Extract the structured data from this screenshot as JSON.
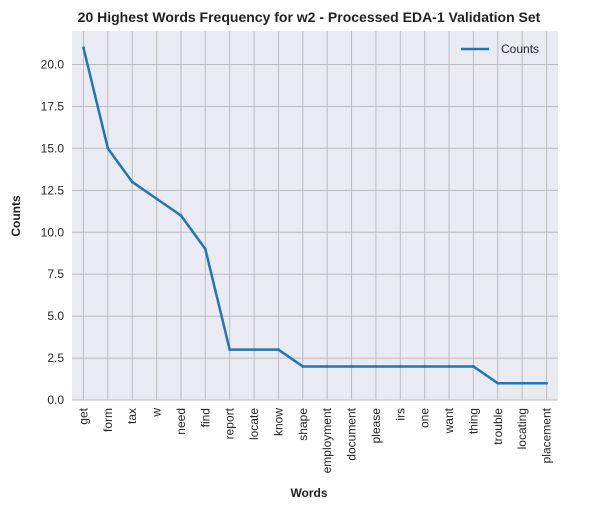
{
  "chart_data": {
    "type": "line",
    "title": "20 Highest Words Frequency for w2 - Processed EDA-1 Validation Set",
    "xlabel": "Words",
    "ylabel": "Counts",
    "categories": [
      "get",
      "form",
      "tax",
      "w",
      "need",
      "find",
      "report",
      "locate",
      "know",
      "shape",
      "employment",
      "document",
      "please",
      "irs",
      "one",
      "want",
      "thing",
      "trouble",
      "locating",
      "placement"
    ],
    "series": [
      {
        "name": "Counts",
        "values": [
          21,
          15,
          13,
          12,
          11,
          9,
          3,
          3,
          3,
          2,
          2,
          2,
          2,
          2,
          2,
          2,
          2,
          1,
          1,
          1
        ],
        "color": "#1f77b4"
      }
    ],
    "yticks": [
      "0.0",
      "2.5",
      "5.0",
      "7.5",
      "10.0",
      "12.5",
      "15.0",
      "17.5",
      "20.0"
    ],
    "ylim": [
      0,
      22
    ],
    "grid": true,
    "legend_position": "top-right",
    "colors": {
      "plot_background": "#eaeaf2",
      "grid": "#bcbcbc",
      "line": "#1f77b4",
      "text": "#262626"
    }
  }
}
